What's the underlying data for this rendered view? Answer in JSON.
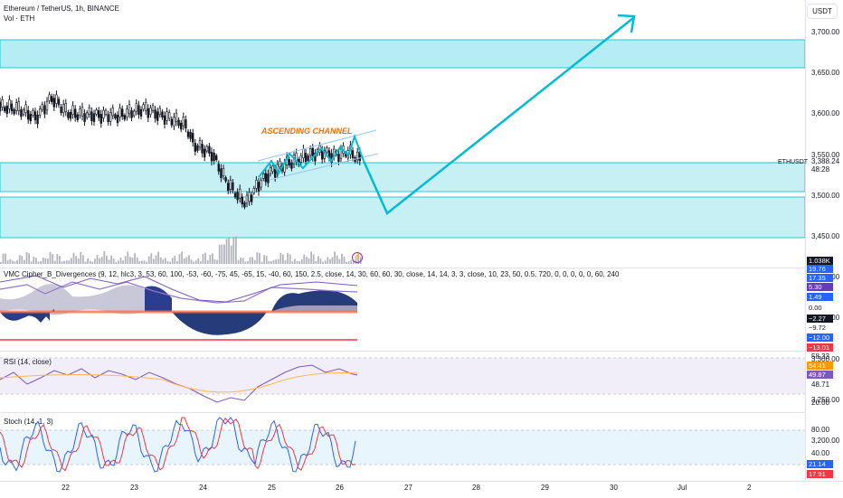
{
  "header": {
    "symbol_title": "Ethereum / TetherUS, 1h, BINANCE",
    "volume_label": "Vol · ETH"
  },
  "price_scale": {
    "currency_button": "USDT",
    "ticks": [
      "3,700.00",
      "3,650.00",
      "3,600.00",
      "3,550.00",
      "3,500.00",
      "3,450.00",
      "3,400.00",
      "3,350.00",
      "3,300.00",
      "3,250.00",
      "3,200.00"
    ],
    "last_price": "3,388.24",
    "countdown": "48:28",
    "symbol_tag": "ETHUSDT"
  },
  "annotations": {
    "channel_label": "ASCENDING CHANNEL"
  },
  "volume_pane": {
    "value_tag": "1.038K"
  },
  "cipher_pane": {
    "title": "VMC Cipher_B_Divergences (9, 12, hlc3, 3, 53, 60, 100, -53, -60, -75, 45, -65, 15, -40, 60, 150, 2.5, close, 14, 30, 60, 60, 30, close, 14, 14, 3, 3, close, 10, 23, 50, 0.5, 720, 0, 0, 0, 0, 0, 60, 240, 0, 0, 240)",
    "tags": [
      {
        "text": "19.76",
        "color": "#2962ff"
      },
      {
        "text": "17.35",
        "color": "#2962ff"
      },
      {
        "text": "5.30",
        "color": "#673ab7"
      },
      {
        "text": "1.49",
        "color": "#2962ff"
      },
      {
        "text": "0.00",
        "color": ""
      },
      {
        "text": "−2.27",
        "color": "#131722"
      },
      {
        "text": "−9.72",
        "color": ""
      },
      {
        "text": "−12.00",
        "color": "#2962ff"
      },
      {
        "text": "−13.01",
        "color": "#f23645"
      }
    ]
  },
  "rsi_pane": {
    "title": "RSI (14, close)",
    "levels": [
      "58.33",
      "48.71",
      "20.00"
    ],
    "tags": [
      {
        "text": "54.41",
        "color": "#ff9800"
      },
      {
        "text": "49.87",
        "color": "#7e57c2"
      }
    ]
  },
  "stoch_pane": {
    "title": "Stoch (14, 1, 3)",
    "levels": [
      "80.00",
      "40.00"
    ],
    "tags": [
      {
        "text": "21.14",
        "color": "#2962ff"
      },
      {
        "text": "17.91",
        "color": "#f23645"
      }
    ]
  },
  "time_scale": {
    "labels": [
      "22",
      "23",
      "24",
      "25",
      "26",
      "27",
      "28",
      "29",
      "30",
      "Jul",
      "2"
    ]
  },
  "colors": {
    "zone_fill": "#b2ebf2",
    "zone_border": "#00bcd4",
    "arrow": "#00bcd4",
    "candle": "#131722",
    "channel": "#90caf9",
    "label_orange": "#ff6d00"
  },
  "icons": {
    "alert": "lightning-icon"
  }
}
